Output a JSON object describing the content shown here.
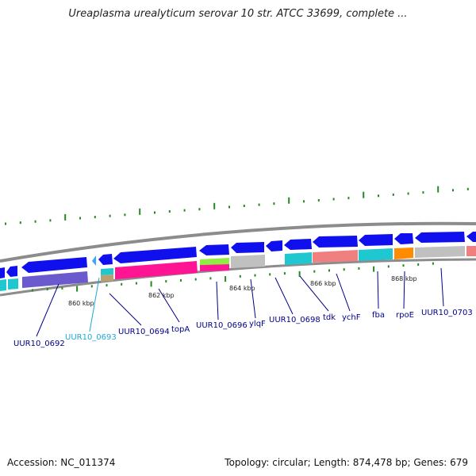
{
  "title": "Ureaplasma urealyticum serovar 10 str. ATCC 33699, complete ...",
  "footer": {
    "accession": "Accession: NC_011374",
    "stats": "Topology: circular; Length: 874,478 bp; Genes: 679"
  },
  "colors": {
    "cds": "#1010ee",
    "backbone": "#8c8c8c",
    "tick": "#228b22",
    "label": "#00008b",
    "label_highlight": "#20a8d8",
    "connector": "#00008b"
  },
  "ruler": [
    {
      "label": "860 kbp"
    },
    {
      "label": "862 kbp"
    },
    {
      "label": "864 kbp"
    },
    {
      "label": "866 kbp"
    },
    {
      "label": "868 kbp"
    }
  ],
  "genes": [
    {
      "label": "UUR10_0692",
      "color": "#00008b"
    },
    {
      "label": "UUR10_0693",
      "color": "#20a8d8"
    },
    {
      "label": "UUR10_0694",
      "color": "#00008b"
    },
    {
      "label": "topA",
      "color": "#00008b"
    },
    {
      "label": "UUR10_0696",
      "color": "#00008b"
    },
    {
      "label": "ylqF",
      "color": "#00008b"
    },
    {
      "label": "UUR10_0698",
      "color": "#00008b"
    },
    {
      "label": "tdk",
      "color": "#00008b"
    },
    {
      "label": "ychF",
      "color": "#00008b"
    },
    {
      "label": "fba",
      "color": "#00008b"
    },
    {
      "label": "rpoE",
      "color": "#00008b"
    },
    {
      "label": "UUR10_0703",
      "color": "#00008b"
    }
  ]
}
